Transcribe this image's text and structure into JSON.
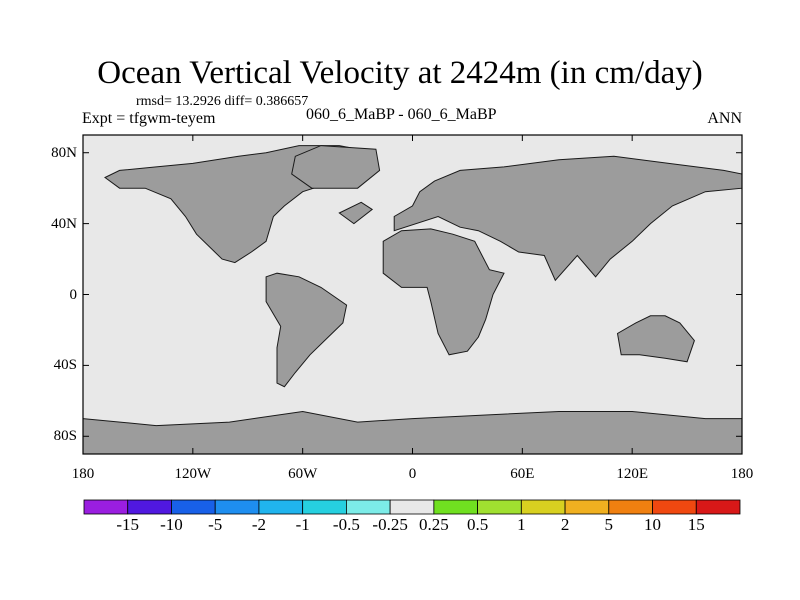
{
  "chart_data": {
    "type": "heatmap",
    "title": "Ocean Vertical Velocity at 2424m (in cm/day)",
    "stats": "rmsd= 13.2926 diff= 0.386657",
    "experiment": "Expt = tfgwm-teyem",
    "case_diff": "060_6_MaBP - 060_6_MaBP",
    "season": "ANN",
    "xlim": [
      -180,
      180
    ],
    "ylim": [
      -90,
      90
    ],
    "lat_ticks": [
      {
        "value": 80,
        "label": "80N"
      },
      {
        "value": 40,
        "label": "40N"
      },
      {
        "value": 0,
        "label": "0"
      },
      {
        "value": -40,
        "label": "40S"
      },
      {
        "value": -80,
        "label": "80S"
      }
    ],
    "lon_ticks": [
      {
        "value": -180,
        "label": "180"
      },
      {
        "value": -120,
        "label": "120W"
      },
      {
        "value": -60,
        "label": "60W"
      },
      {
        "value": 0,
        "label": "0"
      },
      {
        "value": 60,
        "label": "60E"
      },
      {
        "value": 120,
        "label": "120E"
      },
      {
        "value": 180,
        "label": "180"
      }
    ],
    "colorbar_levels": [
      "-15",
      "-10",
      "-5",
      "-2",
      "-1",
      "-0.5",
      "-0.25",
      "0.25",
      "0.5",
      "1",
      "2",
      "5",
      "10",
      "15"
    ],
    "colorbar_colors": [
      "#9a1ee0",
      "#5018e0",
      "#1860e8",
      "#1e8ef0",
      "#20b4ee",
      "#26d0e0",
      "#7cece8",
      "#e8e8e8",
      "#70e020",
      "#a0e030",
      "#d8d020",
      "#f0b020",
      "#f08010",
      "#f04810",
      "#d81818"
    ],
    "land_color": "#9c9c9c"
  }
}
